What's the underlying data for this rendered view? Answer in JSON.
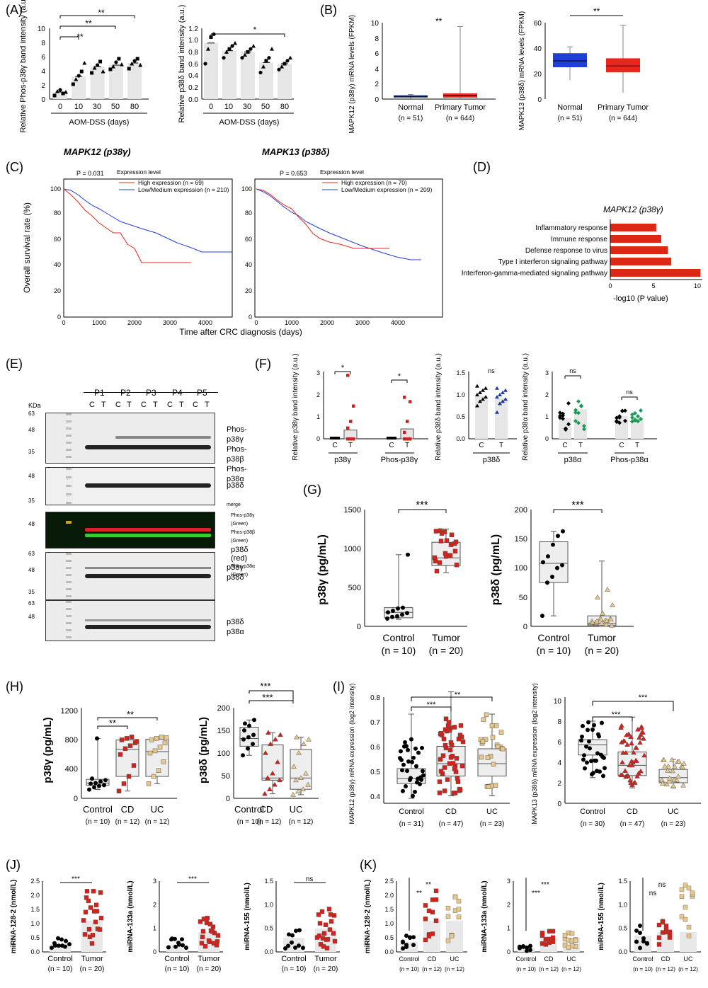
{
  "panels": {
    "A": {
      "label": "(A)",
      "left": {
        "ylabel": "Relative Phos-p38γ band intensity (a.u.)",
        "yticks": [
          "0",
          "2",
          "4",
          "6",
          "8",
          "10"
        ],
        "ymax": 10,
        "categories": [
          "0",
          "10",
          "30",
          "50",
          "80"
        ],
        "xlabel": "AOM-DSS (days)",
        "means": [
          1.0,
          3.2,
          4.6,
          4.8,
          5.1
        ],
        "points": [
          [
            0.5,
            1.1,
            1.3,
            0.8,
            1.0
          ],
          [
            2.1,
            2.8,
            3.3,
            3.9,
            5.1
          ],
          [
            3.7,
            4.4,
            4.8,
            5.3,
            3.9
          ],
          [
            4.2,
            4.6,
            5.2,
            5.7,
            4.9
          ],
          [
            4.3,
            5.0,
            5.4,
            5.7,
            4.8
          ]
        ],
        "sigs": [
          "**",
          "**",
          "**"
        ]
      },
      "right": {
        "ylabel": "Relative p38δ band intensity (a.u.)",
        "yticks": [
          "0.0",
          "0.2",
          "0.4",
          "0.6",
          "0.8",
          "1.0",
          "1.2"
        ],
        "ymax": 1.2,
        "categories": [
          "0",
          "10",
          "30",
          "50",
          "80"
        ],
        "xlabel": "AOM-DSS (days)",
        "means": [
          0.95,
          0.82,
          0.8,
          0.62,
          0.6
        ],
        "points": [
          [
            0.6,
            0.85,
            1.05,
            1.1
          ],
          [
            0.7,
            0.8,
            0.85,
            0.9,
            0.95
          ],
          [
            0.7,
            0.75,
            0.8,
            0.85,
            0.9
          ],
          [
            0.45,
            0.55,
            0.65,
            0.7,
            0.85
          ],
          [
            0.5,
            0.55,
            0.6,
            0.65,
            0.7
          ]
        ],
        "sig": "*"
      }
    },
    "B": {
      "label": "(B)",
      "left": {
        "ylabel": "MAPK12 (p38γ) mRNA levels (FPKM)",
        "yticks": [
          "0",
          "2",
          "4",
          "6",
          "8",
          "10"
        ],
        "ymax": 10,
        "groups": [
          {
            "name": "Normal",
            "n": "(n = 51)",
            "color": "#1f3fd6",
            "q1": 0.2,
            "med": 0.35,
            "q3": 0.5,
            "lo": 0.05,
            "hi": 0.6
          },
          {
            "name": "Primary Tumor",
            "n": "(n = 644)",
            "color": "#e8261b",
            "q1": 0.2,
            "med": 0.45,
            "q3": 0.75,
            "lo": 0.0,
            "hi": 9.5
          }
        ],
        "sig": "**"
      },
      "right": {
        "ylabel": "MAPK13 (p38δ) mRNA levels (FPKM)",
        "yticks": [
          "0",
          "20",
          "40",
          "60"
        ],
        "ymax": 60,
        "groups": [
          {
            "name": "Normal",
            "n": "(n = 51)",
            "color": "#1f3fd6",
            "q1": 25,
            "med": 30,
            "q3": 36,
            "lo": 15,
            "hi": 41
          },
          {
            "name": "Primary Tumor",
            "n": "(n = 644)",
            "color": "#e8261b",
            "q1": 21,
            "med": 26,
            "q3": 32,
            "lo": 5,
            "hi": 58
          }
        ],
        "sig": "**"
      }
    },
    "C": {
      "label": "(C)",
      "ylabel": "Overall survival rate (%)",
      "xlabel": "Time after CRC diagnosis (days)",
      "xticks": [
        "0",
        "1000",
        "2000",
        "3000",
        "4000"
      ],
      "yticks": [
        "0",
        "20",
        "40",
        "60",
        "80",
        "100"
      ],
      "legend_title": "Expression level",
      "left": {
        "title": "MAPK12 (p38γ)",
        "p": "P = 0.031",
        "high": "High expression (n = 69)",
        "low": "Low/Medium expression (n = 210)"
      },
      "right": {
        "title": "MAPK13 (p38δ)",
        "p": "P = 0.653",
        "high": "High expression (n = 70)",
        "low": "Low/Medium expression (n = 209)"
      }
    },
    "D": {
      "label": "(D)",
      "title": "MAPK12 (p38γ)",
      "xlabel": "-log10 (P value)",
      "xticks": [
        "0",
        "5",
        "10"
      ],
      "chart_data": {
        "type": "bar",
        "categories": [
          "Inflammatory response",
          "Immune response",
          "Defense response to virus",
          "Type I interferon signaling pathway",
          "Interferon-gamma-mediated signaling pathway"
        ],
        "values": [
          5.5,
          6.1,
          6.9,
          7.3,
          10.8
        ]
      }
    },
    "E": {
      "label": "(E)",
      "kda": "KDa",
      "patients": [
        "P1",
        "P2",
        "P3",
        "P4",
        "P5"
      ],
      "ct": [
        "C",
        "T"
      ],
      "m1": [
        "63",
        "48",
        "35"
      ],
      "b1": [
        "Phos-p38γ",
        "Phos-p38β",
        "Phos-p38α"
      ],
      "m2": [
        "48",
        "35"
      ],
      "b2": [
        "p38δ"
      ],
      "merge": "merge",
      "b3": [
        "Phos-p38γ (Green)",
        "Phos-p38β (Green)",
        "p38δ (red)",
        "Phos-p38α (Green)"
      ],
      "m3": [
        "48"
      ],
      "m4": [
        "63",
        "48",
        "35"
      ],
      "b4": [
        "p38γ",
        "p38δ"
      ],
      "m5": [
        "63",
        "48"
      ],
      "b5": [
        "p38δ",
        "p38α"
      ]
    },
    "F": {
      "label": "(F)",
      "g1": {
        "ylabel": "Relative p38γ band intensity (a.u.)",
        "yticks": [
          "0",
          "1",
          "2",
          "3"
        ],
        "groups": [
          "p38γ",
          "Phos-p38γ"
        ],
        "sigs": [
          "*",
          "*"
        ]
      },
      "g2": {
        "ylabel": "Relative p38δ band intensity (a.u.)",
        "yticks": [
          "0.0",
          "0.5",
          "1.0",
          "1.5"
        ],
        "groups": [
          "p38δ"
        ],
        "sig": "ns"
      },
      "g3": {
        "ylabel": "Relative p38α band intensity (a.u.)",
        "yticks": [
          "0",
          "1",
          "2",
          "3"
        ],
        "groups": [
          "p38α",
          "Phos-p38α"
        ],
        "sigs": [
          "ns",
          "ns"
        ]
      },
      "ct": [
        "C",
        "T"
      ]
    },
    "G": {
      "label": "(G)",
      "left": {
        "ylabel": "p38γ (pg/mL)",
        "yticks": [
          "0",
          "500",
          "1000",
          "1500"
        ],
        "groups": [
          "Control",
          "Tumor"
        ],
        "ns": [
          "(n = 10)",
          "(n = 20)"
        ],
        "sig": "***"
      },
      "right": {
        "ylabel": "p38δ (pg/mL)",
        "yticks": [
          "0",
          "50",
          "100",
          "150",
          "200"
        ],
        "groups": [
          "Control",
          "Tumor"
        ],
        "ns": [
          "(n = 10)",
          "(n = 20)"
        ],
        "sig": "***"
      }
    },
    "H": {
      "label": "(H)",
      "left": {
        "ylabel": "p38γ (pg/mL)",
        "yticks": [
          "0",
          "400",
          "800",
          "1200"
        ],
        "groups": [
          "Control",
          "CD",
          "UC"
        ],
        "ns": [
          "(n = 10)",
          "(n = 12)",
          "(n = 12)"
        ],
        "sigs": [
          "**",
          "**"
        ]
      },
      "right": {
        "ylabel": "p38δ (pg/mL)",
        "yticks": [
          "0",
          "50",
          "100",
          "150",
          "200"
        ],
        "groups": [
          "Control",
          "CD",
          "UC"
        ],
        "ns": [
          "(n = 10)",
          "(n = 12)",
          "(n = 12)"
        ],
        "sigs": [
          "***",
          "***"
        ]
      }
    },
    "I": {
      "label": "(I)",
      "left": {
        "ylabel": "MAPK12 (p38γ) mRNA expression (log2 intensity)",
        "yticks": [
          "0.4",
          "0.5",
          "0.6",
          "0.7",
          "0.8"
        ],
        "groups": [
          "Control",
          "CD",
          "UC"
        ],
        "ns": [
          "(n = 31)",
          "(n = 47)",
          "(n = 23)"
        ],
        "sigs": [
          "***",
          "**"
        ]
      },
      "right": {
        "ylabel": "MAPK13 (p38δ) mRNA expression (log2 intensity)",
        "yticks": [
          "0",
          "2",
          "4",
          "6",
          "8",
          "10"
        ],
        "groups": [
          "Control",
          "CD",
          "UC"
        ],
        "ns": [
          "(n = 30)",
          "(n = 47)",
          "(n = 23)"
        ],
        "sigs": [
          "***",
          "***"
        ]
      }
    },
    "J": {
      "label": "(J)",
      "p1": {
        "ylabel": "miRNA-128-2 (nmol/L)",
        "yticks": [
          "0.0",
          "0.5",
          "1.0",
          "1.5",
          "2.0",
          "2.5"
        ],
        "sig": "***"
      },
      "p2": {
        "ylabel": "miRNA-133a (nmol/L)",
        "yticks": [
          "0",
          "1",
          "2",
          "3"
        ],
        "sig": "***"
      },
      "p3": {
        "ylabel": "miRNA-155 (nmol/L)",
        "yticks": [
          "0.0",
          "0.5",
          "1.0",
          "1.5"
        ],
        "sig": "ns"
      },
      "groups": [
        "Control",
        "Tumor"
      ],
      "ns": [
        "(n = 10)",
        "(n = 20)"
      ]
    },
    "K": {
      "label": "(K)",
      "p1": {
        "ylabel": "miRNA-128-2 (nmol/L)",
        "yticks": [
          "0.0",
          "0.5",
          "1.0",
          "1.5",
          "2.0",
          "2.5"
        ],
        "sigs": [
          "**",
          "**"
        ]
      },
      "p2": {
        "ylabel": "miRNA-133a (nmol/L)",
        "yticks": [
          "0",
          "1",
          "2",
          "3"
        ],
        "sigs": [
          "***",
          "***"
        ]
      },
      "p3": {
        "ylabel": "miRNA-155 (nmol/L)",
        "yticks": [
          "0.0",
          "0.5",
          "1.0",
          "1.5"
        ],
        "sigs": [
          "ns",
          "ns"
        ]
      },
      "groups": [
        "Control",
        "CD",
        "UC"
      ],
      "ns": [
        "(n = 10)",
        "(n = 12)",
        "(n = 12)"
      ]
    }
  }
}
